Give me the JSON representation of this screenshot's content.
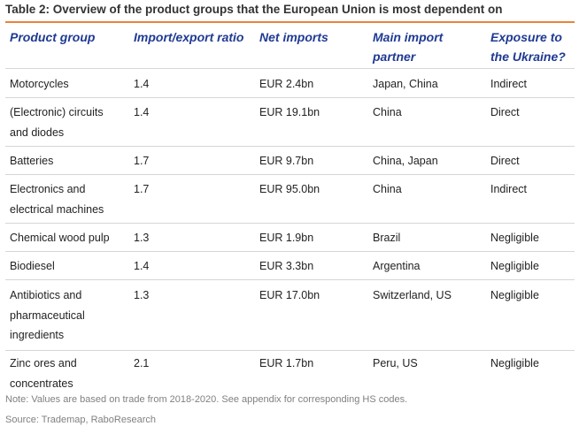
{
  "title": "Table 2: Overview of the product groups that the European Union is most dependent on",
  "headers": {
    "product": "Product group",
    "ratio": "Import/export ratio",
    "net": "Net imports",
    "partner_line1": "Main import",
    "partner_line2": "partner",
    "exposure_line1": "Exposure to",
    "exposure_line2": "the Ukraine?"
  },
  "rows": [
    {
      "product": [
        "Motorcycles"
      ],
      "ratio": "1.4",
      "net": "EUR 2.4bn",
      "partner": "Japan, China",
      "exposure": "Indirect"
    },
    {
      "product": [
        "(Electronic) circuits",
        "and diodes"
      ],
      "ratio": "1.4",
      "net": "EUR 19.1bn",
      "partner": "China",
      "exposure": "Direct"
    },
    {
      "product": [
        "Batteries"
      ],
      "ratio": "1.7",
      "net": "EUR 9.7bn",
      "partner": "China, Japan",
      "exposure": "Direct"
    },
    {
      "product": [
        "Electronics and",
        "electrical machines"
      ],
      "ratio": "1.7",
      "net": "EUR 95.0bn",
      "partner": "China",
      "exposure": "Indirect"
    },
    {
      "product": [
        "Chemical wood pulp"
      ],
      "ratio": "1.3",
      "net": "EUR 1.9bn",
      "partner": "Brazil",
      "exposure": "Negligible"
    },
    {
      "product": [
        "Biodiesel"
      ],
      "ratio": "1.4",
      "net": "EUR 3.3bn",
      "partner": "Argentina",
      "exposure": "Negligible"
    },
    {
      "product": [
        "Antibiotics and",
        "pharmaceutical",
        "ingredients"
      ],
      "ratio": "1.3",
      "net": "EUR 17.0bn",
      "partner": "Switzerland, US",
      "exposure": "Negligible"
    },
    {
      "product": [
        "Zinc ores and",
        "concentrates"
      ],
      "ratio": "2.1",
      "net": "EUR 1.7bn",
      "partner": "Peru, US",
      "exposure": "Negligible"
    }
  ],
  "note": "Note: Values are based on trade from 2018-2020. See appendix for corresponding HS codes.",
  "source": "Source: Trademap, RaboResearch",
  "colors": {
    "header_text": "#1f3a93",
    "title_rule": "#e8833a",
    "row_rule": "#d6d6d6",
    "note_text": "#808080"
  }
}
